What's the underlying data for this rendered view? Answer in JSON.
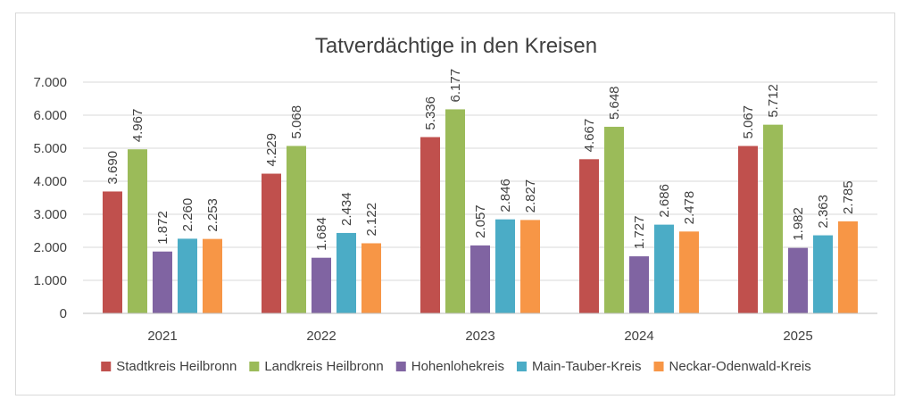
{
  "chart_data": {
    "type": "bar",
    "title": "Tatverdächtige in den Kreisen",
    "xlabel": "",
    "ylabel": "",
    "ylim": [
      0,
      7000
    ],
    "yticks": [
      0,
      1000,
      2000,
      3000,
      4000,
      5000,
      6000,
      7000
    ],
    "ytick_labels": [
      "0",
      "1.000",
      "2.000",
      "3.000",
      "4.000",
      "5.000",
      "6.000",
      "7.000"
    ],
    "grid": true,
    "legend_position": "bottom",
    "categories": [
      "2021",
      "2022",
      "2023",
      "2024",
      "2025"
    ],
    "series": [
      {
        "name": "Stadtkreis Heilbronn",
        "color": "#c0504d",
        "values": [
          3690,
          4229,
          5336,
          4667,
          5067
        ],
        "labels": [
          "3.690",
          "4.229",
          "5.336",
          "4.667",
          "5.067"
        ]
      },
      {
        "name": "Landkreis Heilbronn",
        "color": "#9bbb59",
        "values": [
          4967,
          5068,
          6177,
          5648,
          5712
        ],
        "labels": [
          "4.967",
          "5.068",
          "6.177",
          "5.648",
          "5.712"
        ]
      },
      {
        "name": "Hohenlohekreis",
        "color": "#8064a2",
        "values": [
          1872,
          1684,
          2057,
          1727,
          1982
        ],
        "labels": [
          "1.872",
          "1.684",
          "2.057",
          "1.727",
          "1.982"
        ]
      },
      {
        "name": "Main-Tauber-Kreis",
        "color": "#4bacc6",
        "values": [
          2260,
          2434,
          2846,
          2686,
          2363
        ],
        "labels": [
          "2.260",
          "2.434",
          "2.846",
          "2.686",
          "2.363"
        ]
      },
      {
        "name": "Neckar-Odenwald-Kreis",
        "color": "#f79646",
        "values": [
          2253,
          2122,
          2827,
          2478,
          2785
        ],
        "labels": [
          "2.253",
          "2.122",
          "2.827",
          "2.478",
          "2.785"
        ]
      }
    ]
  }
}
